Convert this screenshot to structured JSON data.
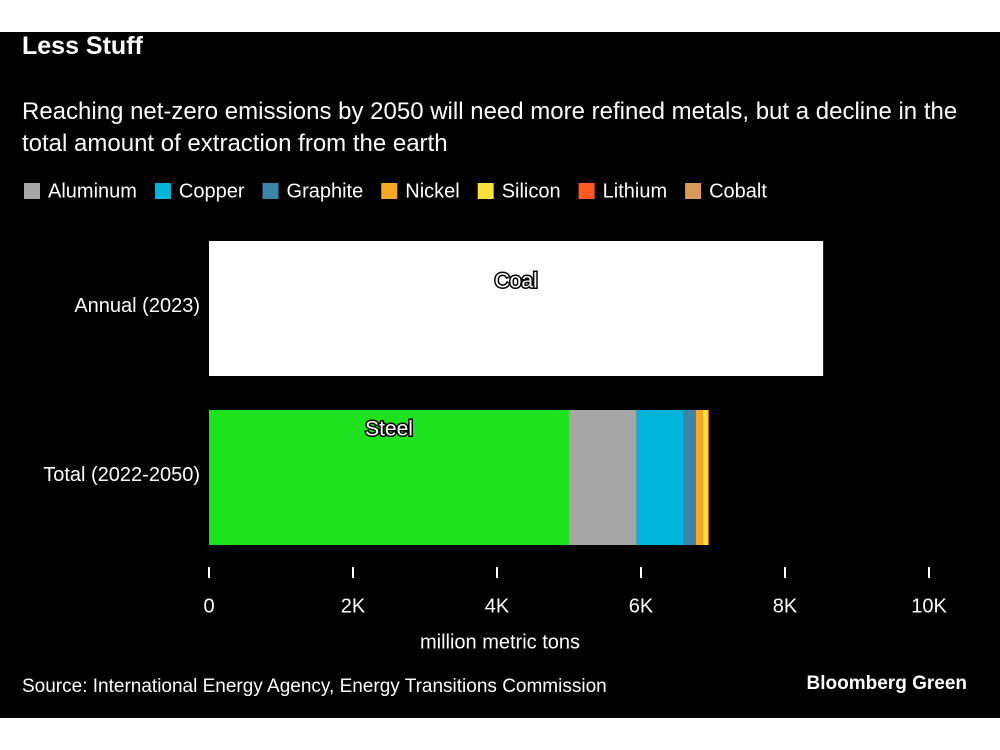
{
  "chart_data": {
    "type": "stacked_bar",
    "orientation": "horizontal",
    "title": "Less Stuff",
    "subtitle": "Reaching net-zero emissions by 2050 will need more refined metals, but a decline in the total amount of extraction from the earth",
    "categories": [
      "Annual (2023)",
      "Total (2022-2050)"
    ],
    "series": [
      {
        "name": "Coal",
        "color": "#ffffff",
        "values": [
          8530,
          null
        ],
        "label_position": "inside"
      },
      {
        "name": "Steel",
        "color": "#1fe21f",
        "values": [
          null,
          5000
        ],
        "label_position": "inside"
      },
      {
        "name": "Aluminum",
        "color": "#a6a6a6",
        "values": [
          null,
          940
        ]
      },
      {
        "name": "Copper",
        "color": "#00b5d9",
        "values": [
          null,
          650
        ]
      },
      {
        "name": "Graphite",
        "color": "#3a85a8",
        "values": [
          null,
          170
        ]
      },
      {
        "name": "Nickel",
        "color": "#f7a823",
        "values": [
          null,
          100
        ]
      },
      {
        "name": "Silicon",
        "color": "#f7e13a",
        "values": [
          null,
          70
        ]
      },
      {
        "name": "Lithium",
        "color": "#ff5a1f",
        "values": [
          null,
          10
        ]
      },
      {
        "name": "Cobalt",
        "color": "#d89a5a",
        "values": [
          null,
          5
        ]
      }
    ],
    "xlim": [
      0,
      10000
    ],
    "xticks": [
      0,
      {
        "value": 2000,
        "label": "2K"
      },
      {
        "value": 4000,
        "label": "4K"
      },
      {
        "value": 6000,
        "label": "6K"
      },
      {
        "value": 8000,
        "label": "8K"
      },
      {
        "value": 10000,
        "label": "10K"
      }
    ],
    "xlabel": "million metric tons",
    "source": "Source: International Energy Agency, Energy Transitions Commission",
    "brand": "Bloomberg Green"
  }
}
